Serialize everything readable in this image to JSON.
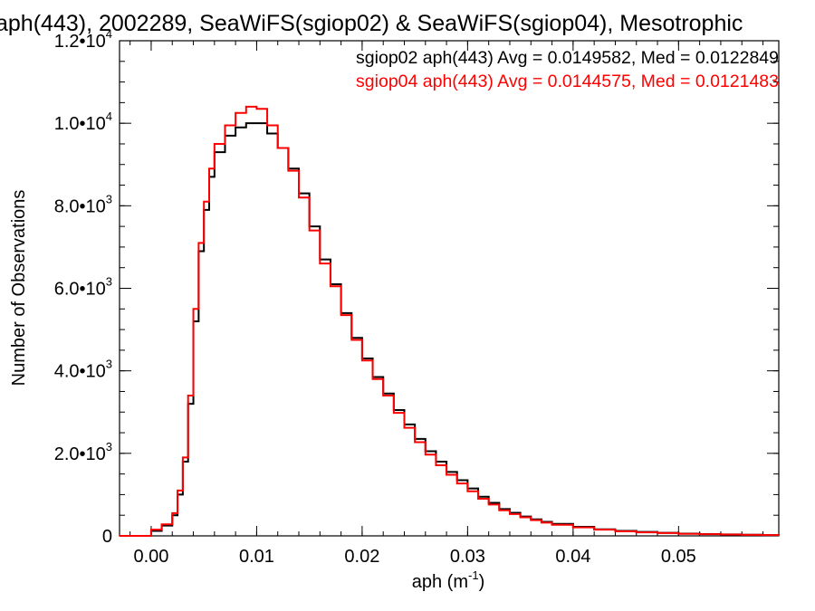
{
  "chart_data": {
    "type": "line",
    "title": "aph(443), 2002289, SeaWiFS(sgiop02) & SeaWiFS(sgiop04), Mesotrophic",
    "xlabel": {
      "base": "aph (m",
      "sup": "-1",
      "close": ")"
    },
    "ylabel": "Number of Observations",
    "xlim": [
      -0.003,
      0.0595
    ],
    "ylim": [
      0,
      12000
    ],
    "grid": false,
    "legend_position": "top-right",
    "x_ticks": [
      {
        "value": 0.0,
        "label": "0.00"
      },
      {
        "value": 0.01,
        "label": "0.01"
      },
      {
        "value": 0.02,
        "label": "0.02"
      },
      {
        "value": 0.03,
        "label": "0.03"
      },
      {
        "value": 0.04,
        "label": "0.04"
      },
      {
        "value": 0.05,
        "label": "0.05"
      }
    ],
    "x_minor_step": 0.002,
    "y_ticks": [
      {
        "value": 0,
        "base": "0",
        "exp": ""
      },
      {
        "value": 2000,
        "base": "2.0•10",
        "exp": "3"
      },
      {
        "value": 4000,
        "base": "4.0•10",
        "exp": "3"
      },
      {
        "value": 6000,
        "base": "6.0•10",
        "exp": "3"
      },
      {
        "value": 8000,
        "base": "8.0•10",
        "exp": "3"
      },
      {
        "value": 10000,
        "base": "1.0•10",
        "exp": "4"
      },
      {
        "value": 12000,
        "base": "1.2•10",
        "exp": "4"
      }
    ],
    "y_minor_step": 500,
    "series": [
      {
        "name": "sgiop02",
        "color": "#000000",
        "legend": "sgiop02 aph(443) Avg = 0.0149582, Med = 0.0122849",
        "x": [
          -0.003,
          -0.0005,
          0.0,
          0.001,
          0.002,
          0.0025,
          0.003,
          0.0035,
          0.004,
          0.0045,
          0.005,
          0.0055,
          0.006,
          0.007,
          0.008,
          0.009,
          0.01,
          0.011,
          0.012,
          0.013,
          0.014,
          0.015,
          0.016,
          0.017,
          0.018,
          0.019,
          0.02,
          0.021,
          0.022,
          0.023,
          0.024,
          0.025,
          0.026,
          0.027,
          0.028,
          0.029,
          0.03,
          0.031,
          0.032,
          0.033,
          0.034,
          0.035,
          0.036,
          0.037,
          0.038,
          0.04,
          0.042,
          0.044,
          0.046,
          0.048,
          0.05,
          0.052,
          0.054,
          0.056,
          0.058,
          0.0595
        ],
        "values": [
          0,
          0,
          120,
          250,
          500,
          1000,
          1800,
          3200,
          5200,
          6900,
          7900,
          8700,
          9300,
          9700,
          9900,
          10000,
          10000,
          9750,
          9400,
          8900,
          8300,
          7500,
          6700,
          6100,
          5400,
          4800,
          4300,
          3850,
          3450,
          3050,
          2700,
          2350,
          2050,
          1800,
          1550,
          1350,
          1150,
          950,
          800,
          650,
          560,
          470,
          400,
          340,
          290,
          220,
          160,
          120,
          95,
          75,
          55,
          45,
          35,
          28,
          20,
          15
        ]
      },
      {
        "name": "sgiop04",
        "color": "#ff0000",
        "legend": "sgiop04 aph(443) Avg = 0.0144575, Med = 0.0121483",
        "x": [
          -0.003,
          -0.0005,
          0.0,
          0.001,
          0.002,
          0.0025,
          0.003,
          0.0035,
          0.004,
          0.0045,
          0.005,
          0.0055,
          0.006,
          0.007,
          0.008,
          0.009,
          0.01,
          0.011,
          0.012,
          0.013,
          0.014,
          0.015,
          0.016,
          0.017,
          0.018,
          0.019,
          0.02,
          0.021,
          0.022,
          0.023,
          0.024,
          0.025,
          0.026,
          0.027,
          0.028,
          0.029,
          0.03,
          0.031,
          0.032,
          0.033,
          0.034,
          0.035,
          0.036,
          0.037,
          0.038,
          0.04,
          0.042,
          0.044,
          0.046,
          0.048,
          0.05,
          0.052,
          0.054,
          0.056,
          0.058,
          0.0595
        ],
        "values": [
          0,
          0,
          150,
          280,
          550,
          1100,
          1900,
          3400,
          5500,
          7100,
          8100,
          8900,
          9500,
          9950,
          10250,
          10400,
          10350,
          9950,
          9400,
          8850,
          8200,
          7400,
          6600,
          6050,
          5350,
          4750,
          4250,
          3800,
          3400,
          2980,
          2620,
          2270,
          1970,
          1710,
          1480,
          1270,
          1080,
          900,
          760,
          620,
          530,
          450,
          380,
          320,
          270,
          205,
          150,
          110,
          85,
          68,
          50,
          40,
          32,
          25,
          18,
          12
        ]
      }
    ]
  }
}
